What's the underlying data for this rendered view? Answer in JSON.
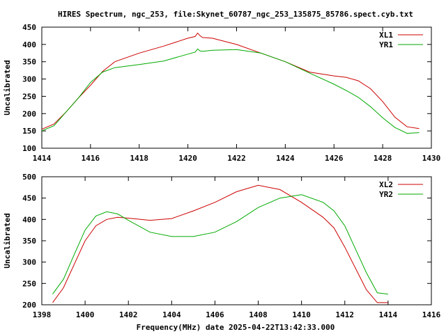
{
  "title": "HIRES Spectrum, ngc_253, file:Skynet_60787_ngc_253_135875_85786.spect.cyb.txt",
  "xlabel": "Frequency(MHz) date 2025-04-22T13:42:33.000",
  "colors": {
    "red": "#cc0000",
    "green": "#00aa00"
  },
  "chart_data": [
    {
      "type": "line",
      "ylabel": "Uncalibrated",
      "xlim": [
        1414,
        1430
      ],
      "ylim": [
        100,
        450
      ],
      "xticks": [
        1414,
        1416,
        1418,
        1420,
        1422,
        1424,
        1426,
        1428,
        1430
      ],
      "yticks": [
        100,
        150,
        200,
        250,
        300,
        350,
        400,
        450
      ],
      "legend": "top-right",
      "grid": false,
      "series": [
        {
          "name": "XL1",
          "color": "#cc0000",
          "x": [
            1414,
            1414.5,
            1415,
            1415.5,
            1416,
            1416.5,
            1417,
            1418,
            1419,
            1420,
            1420.3,
            1420.4,
            1420.5,
            1420.6,
            1421,
            1422,
            1423,
            1424,
            1425,
            1426,
            1426.5,
            1427,
            1427.5,
            1428,
            1428.5,
            1429,
            1429.5
          ],
          "y": [
            155,
            170,
            205,
            245,
            282,
            322,
            350,
            375,
            395,
            418,
            423,
            433,
            425,
            420,
            418,
            400,
            375,
            350,
            320,
            309,
            305,
            295,
            272,
            235,
            190,
            162,
            157
          ]
        },
        {
          "name": "YR1",
          "color": "#00aa00",
          "x": [
            1414,
            1414.5,
            1415,
            1415.5,
            1416,
            1416.5,
            1417,
            1418,
            1419,
            1420,
            1420.3,
            1420.4,
            1420.5,
            1420.6,
            1421,
            1422,
            1423,
            1424,
            1425,
            1426,
            1426.5,
            1427,
            1427.5,
            1428,
            1428.5,
            1429,
            1429.5
          ],
          "y": [
            150,
            165,
            205,
            245,
            290,
            320,
            333,
            342,
            352,
            372,
            378,
            387,
            381,
            380,
            383,
            385,
            375,
            350,
            317,
            285,
            267,
            247,
            220,
            188,
            160,
            143,
            145
          ]
        }
      ]
    },
    {
      "type": "line",
      "ylabel": "Uncalibrated",
      "xlim": [
        1398,
        1416
      ],
      "ylim": [
        200,
        500
      ],
      "xticks": [
        1398,
        1400,
        1402,
        1404,
        1406,
        1408,
        1410,
        1412,
        1414,
        1416
      ],
      "yticks": [
        200,
        250,
        300,
        350,
        400,
        450,
        500
      ],
      "legend": "top-right",
      "grid": false,
      "series": [
        {
          "name": "XL2",
          "color": "#cc0000",
          "x": [
            1398.5,
            1399,
            1399.5,
            1400,
            1400.5,
            1401,
            1401.5,
            1402,
            1403,
            1404,
            1405,
            1406,
            1407,
            1408,
            1409,
            1410,
            1411,
            1411.5,
            1412,
            1412.5,
            1413,
            1413.5,
            1414
          ],
          "y": [
            205,
            240,
            295,
            350,
            385,
            400,
            405,
            403,
            398,
            402,
            420,
            440,
            465,
            480,
            470,
            440,
            405,
            380,
            335,
            285,
            235,
            205,
            205
          ]
        },
        {
          "name": "YR2",
          "color": "#00aa00",
          "x": [
            1398.5,
            1399,
            1399.5,
            1400,
            1400.5,
            1401,
            1401.5,
            1402,
            1403,
            1404,
            1405,
            1406,
            1407,
            1408,
            1409,
            1410,
            1411,
            1411.5,
            1412,
            1412.5,
            1413,
            1413.5,
            1414
          ],
          "y": [
            225,
            260,
            318,
            375,
            408,
            418,
            413,
            398,
            370,
            360,
            360,
            370,
            395,
            428,
            450,
            458,
            440,
            420,
            385,
            330,
            275,
            228,
            225
          ]
        }
      ]
    }
  ]
}
